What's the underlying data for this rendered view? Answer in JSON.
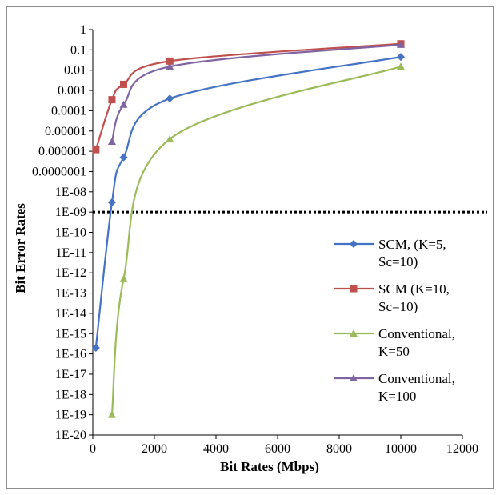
{
  "chart_data": {
    "type": "line",
    "title": "",
    "xlabel": "Bit Rates (Mbps)",
    "ylabel": "Bit Error Rates",
    "xlim": [
      0,
      12000
    ],
    "x_ticks": [
      0,
      2000,
      4000,
      6000,
      8000,
      10000,
      12000
    ],
    "y_scale": "log",
    "ylim_exponent": [
      -20,
      0
    ],
    "y_tick_labels": [
      "1",
      "0.1",
      "0.01",
      "0.001",
      "0.0001",
      "0.00001",
      "0.000001",
      "0.0000001",
      "1E-08",
      "1E-09",
      "1E-10",
      "1E-11",
      "1E-12",
      "1E-13",
      "1E-14",
      "1E-15",
      "1E-16",
      "1E-17",
      "1E-18",
      "1E-19",
      "1E-20"
    ],
    "grid": false,
    "legend_position": "right",
    "reference_line": {
      "y": 1e-09,
      "style": "dotted",
      "color": "#000000"
    },
    "series": [
      {
        "name": "SCM, (K=5, Sc=10)",
        "legend_lines": [
          "SCM, (K=5,",
          "Sc=10)"
        ],
        "color": "#4472C4",
        "marker": "diamond",
        "x": [
          100,
          622,
          1000,
          2500,
          10000
        ],
        "y": [
          2e-16,
          3e-09,
          5e-07,
          0.0004,
          0.045
        ]
      },
      {
        "name": "SCM (K=10, Sc=10)",
        "legend_lines": [
          "SCM (K=10,",
          "Sc=10)"
        ],
        "color": "#C0504D",
        "marker": "square",
        "x": [
          100,
          622,
          1000,
          2500,
          10000
        ],
        "y": [
          1.2e-06,
          0.00035,
          0.002,
          0.028,
          0.2
        ]
      },
      {
        "name": "Conventional, K=50",
        "legend_lines": [
          "Conventional,",
          "K=50"
        ],
        "color": "#9BBB59",
        "marker": "triangle",
        "x": [
          622,
          1000,
          2500,
          10000
        ],
        "y": [
          1e-19,
          5e-13,
          4e-06,
          0.015
        ]
      },
      {
        "name": "Conventional, K=100",
        "legend_lines": [
          "Conventional,",
          "K=100"
        ],
        "color": "#8064A2",
        "marker": "triangle",
        "x": [
          622,
          1000,
          2500,
          10000
        ],
        "y": [
          3e-06,
          0.0002,
          0.015,
          0.18
        ]
      }
    ]
  }
}
